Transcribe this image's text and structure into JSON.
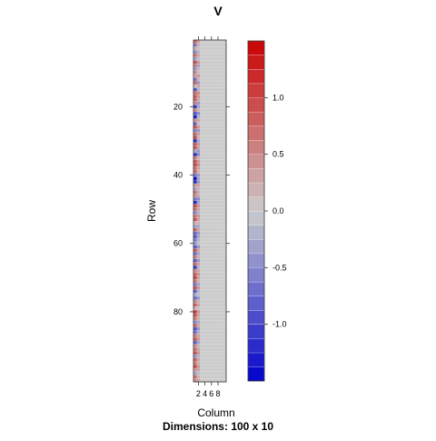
{
  "chart_data": {
    "type": "heatmap",
    "title": "V",
    "xlabel": "Column",
    "ylabel": "Row",
    "subtitle": "Dimensions: 100 x 10",
    "nrows": 100,
    "ncols": 10,
    "x_ticks": [
      2,
      4,
      6,
      8
    ],
    "y_ticks": [
      20,
      40,
      60,
      80
    ],
    "xlim": [
      0.5,
      10.5
    ],
    "ylim": [
      100.5,
      0.5
    ],
    "colorkey": {
      "breaks": [
        -1.5,
        -1.375,
        -1.25,
        -1.125,
        -1.0,
        -0.875,
        -0.75,
        -0.625,
        -0.5,
        -0.375,
        -0.25,
        -0.125,
        0.0,
        0.125,
        0.25,
        0.375,
        0.5,
        0.625,
        0.75,
        0.875,
        1.0,
        1.125,
        1.25,
        1.375,
        1.5
      ],
      "ticks": [
        -1.0,
        -0.5,
        0.0,
        0.5,
        1.0
      ],
      "tick_labels": [
        "-1.0",
        "-0.5",
        "0.0",
        "0.5",
        "1.0"
      ],
      "low_color": "#0000cc",
      "mid_color": "#cccccc",
      "high_color": "#cc0000"
    },
    "column_1_values": [
      0.8,
      -0.6,
      0.2,
      -0.5,
      0.7,
      -0.3,
      0.9,
      0.6,
      -0.4,
      0.5,
      0.3,
      -0.7,
      0.8,
      0.1,
      -0.9,
      0.7,
      0.9,
      0.8,
      0.5,
      -1.1,
      0.6,
      -0.9,
      -1.3,
      0.4,
      -0.8,
      0.9,
      -0.5,
      0.7,
      1.0,
      -1.2,
      0.8,
      0.9,
      -0.3,
      -1.2,
      0.6,
      0.9,
      1.0,
      0.7,
      0.8,
      -0.6,
      -1.4,
      -1.2,
      0.4,
      -0.3,
      0.7,
      0.5,
      -0.6,
      -1.2,
      0.9,
      0.7,
      -0.5,
      0.6,
      0.9,
      0.2,
      -0.3,
      0.8,
      -0.7,
      -0.9,
      -0.6,
      -0.4,
      -0.8,
      0.9,
      -0.7,
      0.6,
      -0.8,
      0.7,
      -1.1,
      0.5,
      0.8,
      1.0,
      0.7,
      -0.6,
      0.9,
      -0.8,
      -0.3,
      -0.7,
      0.5,
      0.8,
      0.2,
      1.1,
      0.9,
      0.6,
      -0.5,
      0.8,
      -0.9,
      -0.7,
      0.6,
      0.9,
      -0.8,
      0.5,
      0.7,
      0.9,
      -0.4,
      0.8,
      0.6,
      1.0,
      0.4,
      -0.3,
      0.7,
      0.5
    ],
    "column_2_values": [
      0.3,
      0.2,
      0.1,
      -0.2,
      0.3,
      -0.1,
      0.4,
      -0.3,
      0.2,
      -0.1,
      0.4,
      0.2,
      -0.4,
      0.3,
      -0.2,
      0.5,
      0.4,
      0.3,
      -0.4,
      -0.3,
      0.2,
      -0.5,
      -0.2,
      0.3,
      0.1,
      0.4,
      -0.4,
      0.3,
      0.2,
      -0.3,
      0.4,
      0.3,
      -0.4,
      -0.5,
      0.2,
      0.4,
      0.5,
      0.3,
      0.2,
      -0.4,
      -0.3,
      -0.4,
      0.3,
      0.2,
      -0.2,
      0.3,
      -0.5,
      -0.3,
      0.4,
      0.3,
      -0.2,
      0.4,
      0.3,
      0.2,
      -0.3,
      0.3,
      -0.4,
      -0.3,
      -0.2,
      0.1,
      -0.4,
      0.3,
      -0.3,
      0.2,
      -0.4,
      0.3,
      -0.2,
      0.3,
      0.4,
      0.3,
      0.2,
      -0.3,
      0.4,
      -0.2,
      -0.1,
      -0.4,
      0.2,
      0.3,
      0.1,
      0.4,
      0.3,
      0.2,
      -0.3,
      0.3,
      -0.4,
      -0.2,
      0.3,
      0.4,
      -0.3,
      0.2,
      0.3,
      0.4,
      -0.2,
      0.3,
      0.2,
      0.4,
      0.3,
      -0.1,
      0.2,
      0.3
    ],
    "other_columns_value": 0.0
  }
}
